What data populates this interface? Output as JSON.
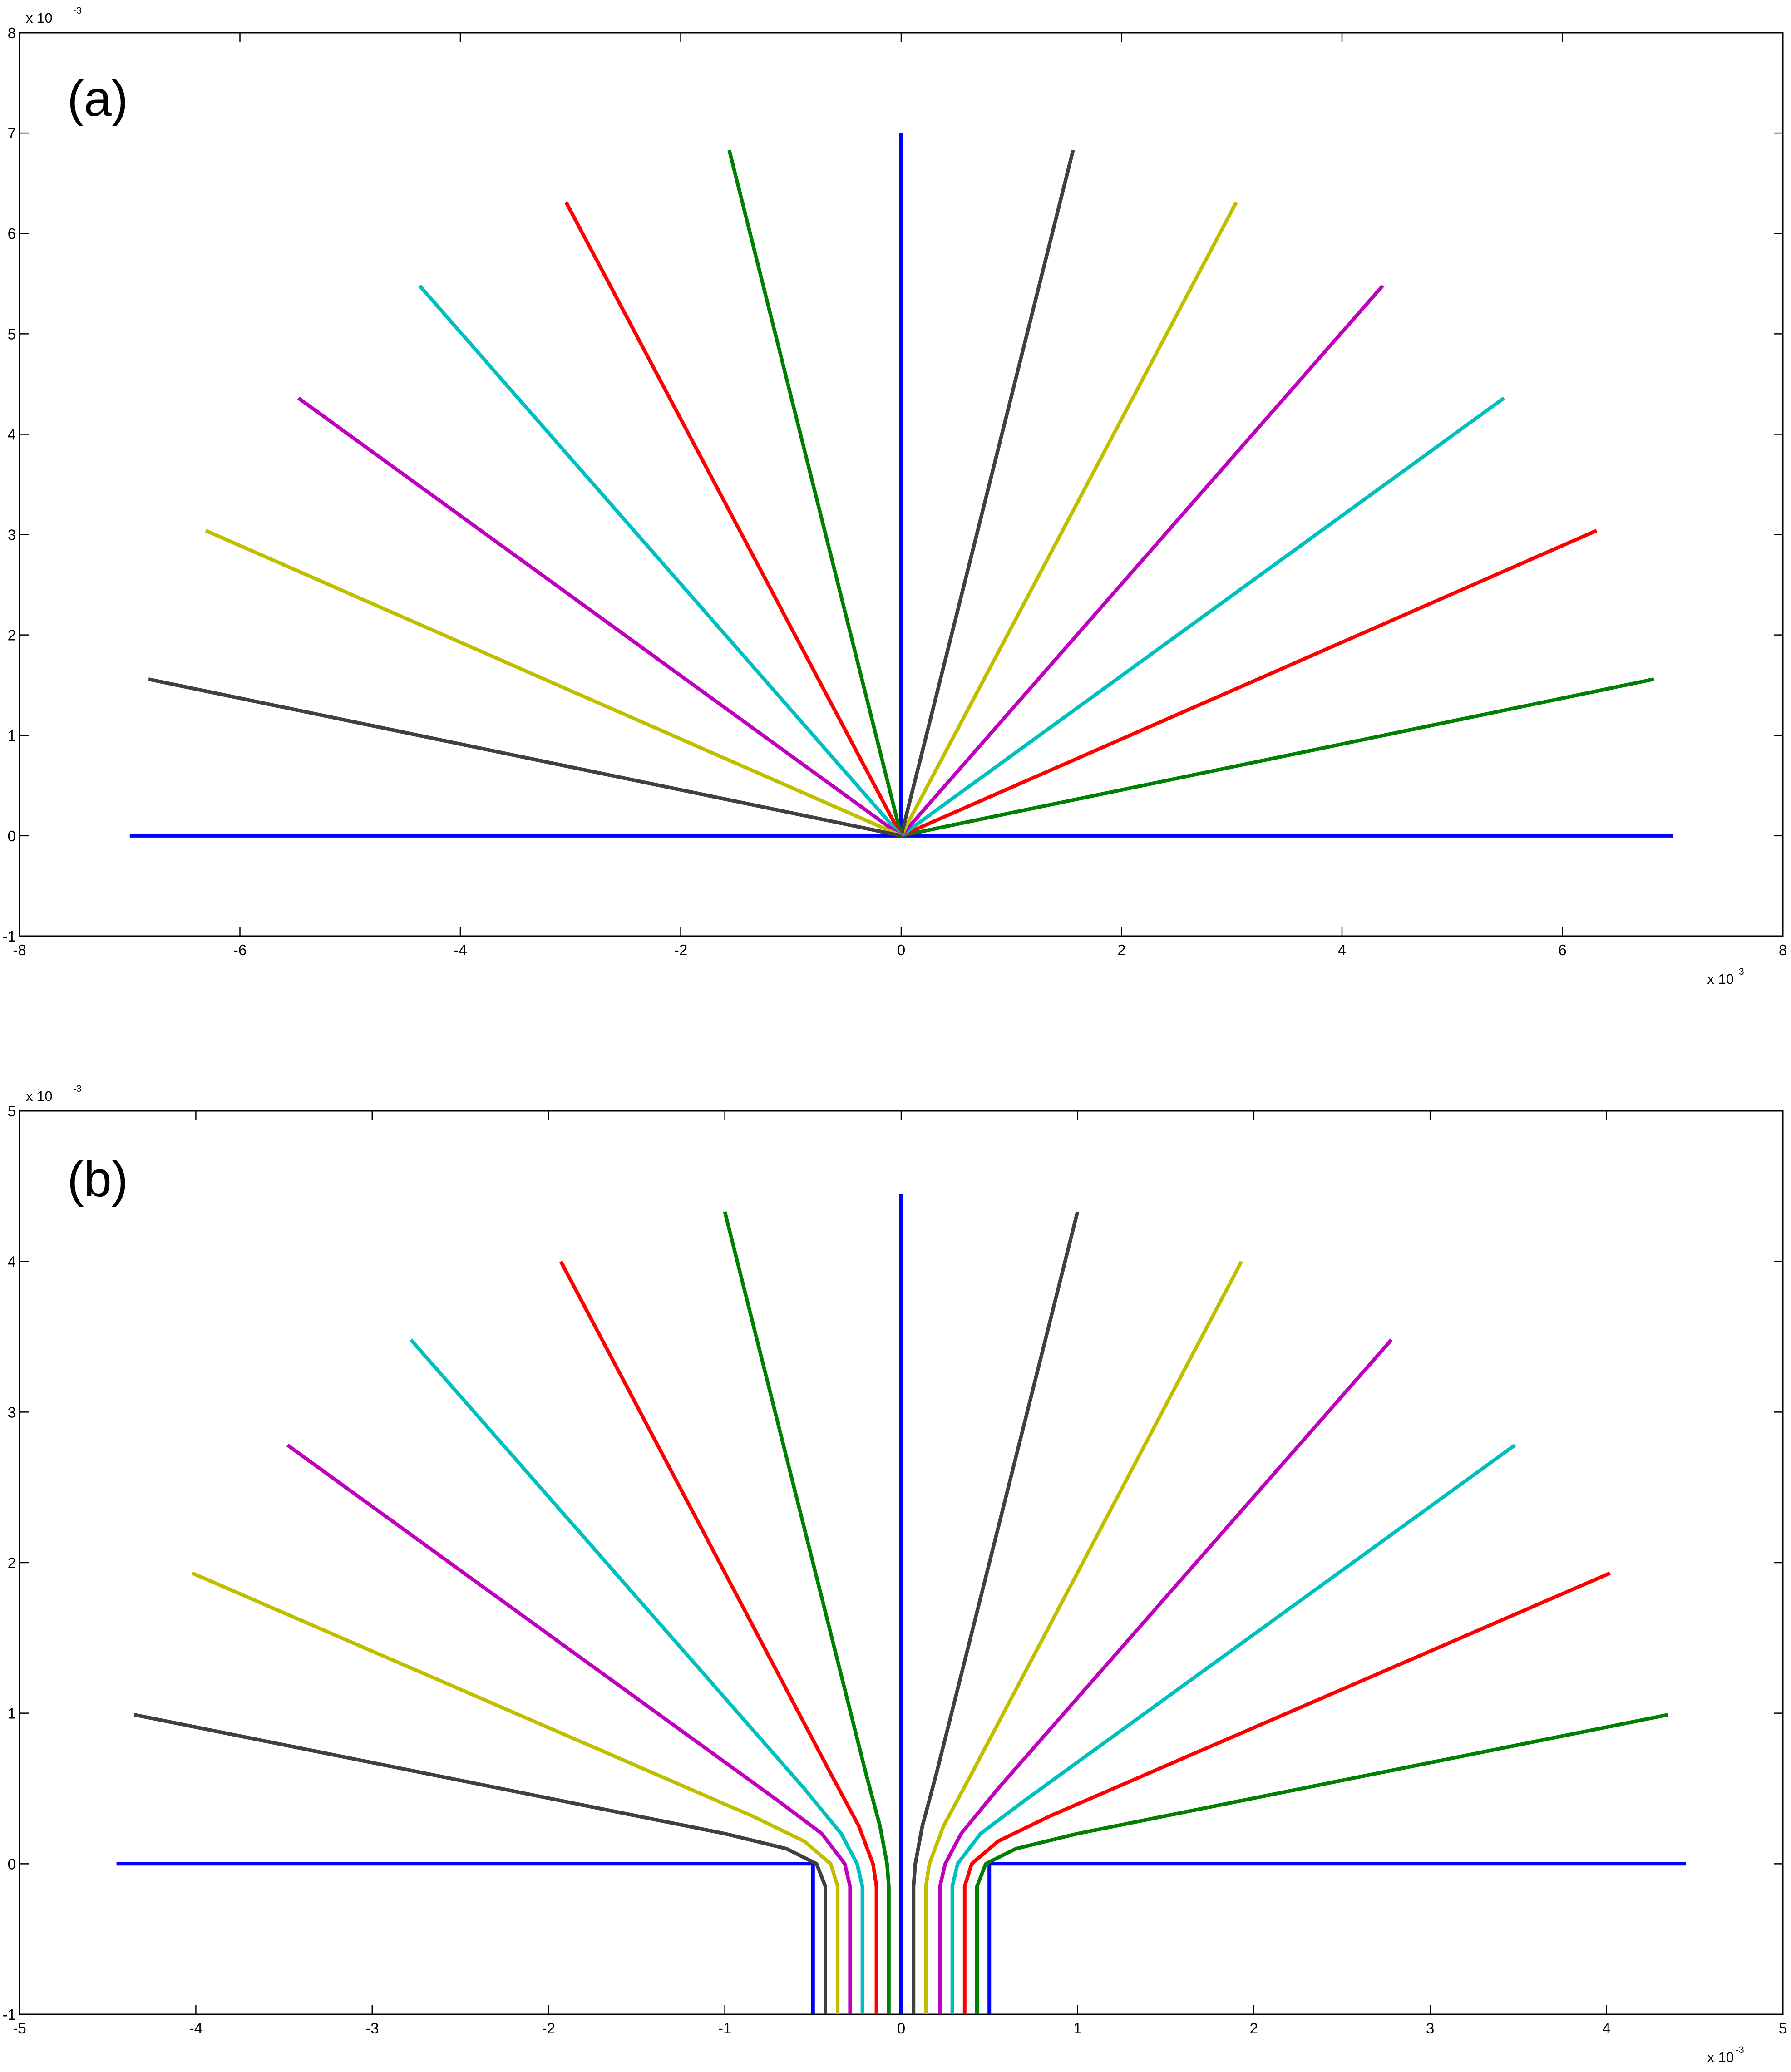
{
  "chart_data": [
    {
      "type": "line",
      "panel_label": "(a)",
      "x_exponent": "x 10",
      "x_exponent_power": "-3",
      "y_exponent": "x 10",
      "y_exponent_power": "-3",
      "xlim": [
        -8,
        8
      ],
      "ylim": [
        -1,
        8
      ],
      "xticks": [
        -8,
        -6,
        -4,
        -2,
        0,
        2,
        4,
        6,
        8
      ],
      "yticks": [
        -1,
        0,
        1,
        2,
        3,
        4,
        5,
        6,
        7,
        8
      ],
      "xtick_labels": [
        "-8",
        "-6",
        "-4",
        "-2",
        "0",
        "2",
        "4",
        "6",
        "8"
      ],
      "ytick_labels": [
        "-1",
        "0",
        "1",
        "2",
        "3",
        "4",
        "5",
        "6",
        "7",
        "8"
      ],
      "grid": false,
      "legend": "none",
      "series": [
        {
          "color": "#0000ff",
          "points": [
            [
              -7.0,
              0.0
            ],
            [
              7.0,
              0.0
            ]
          ]
        },
        {
          "color": "#0000ff",
          "points": [
            [
              0.0,
              0.0
            ],
            [
              0.0,
              7.0
            ]
          ]
        },
        {
          "color": "#008000",
          "points": [
            [
              0.0,
              0.0
            ],
            [
              6.83,
              1.56
            ]
          ]
        },
        {
          "color": "#ff0000",
          "points": [
            [
              0.0,
              0.0
            ],
            [
              6.31,
              3.04
            ]
          ]
        },
        {
          "color": "#00bfbf",
          "points": [
            [
              0.0,
              0.0
            ],
            [
              5.47,
              4.36
            ]
          ]
        },
        {
          "color": "#bf00bf",
          "points": [
            [
              0.0,
              0.0
            ],
            [
              4.37,
              5.48
            ]
          ]
        },
        {
          "color": "#bfbf00",
          "points": [
            [
              0.0,
              0.0
            ],
            [
              3.04,
              6.31
            ]
          ]
        },
        {
          "color": "#404040",
          "points": [
            [
              0.0,
              0.0
            ],
            [
              1.56,
              6.83
            ]
          ]
        },
        {
          "color": "#008000",
          "points": [
            [
              0.0,
              0.0
            ],
            [
              -1.56,
              6.83
            ]
          ]
        },
        {
          "color": "#ff0000",
          "points": [
            [
              0.0,
              0.0
            ],
            [
              -3.04,
              6.31
            ]
          ]
        },
        {
          "color": "#00bfbf",
          "points": [
            [
              0.0,
              0.0
            ],
            [
              -4.37,
              5.48
            ]
          ]
        },
        {
          "color": "#bf00bf",
          "points": [
            [
              0.0,
              0.0
            ],
            [
              -5.47,
              4.36
            ]
          ]
        },
        {
          "color": "#bfbf00",
          "points": [
            [
              0.0,
              0.0
            ],
            [
              -6.31,
              3.04
            ]
          ]
        },
        {
          "color": "#404040",
          "points": [
            [
              0.0,
              0.0
            ],
            [
              -6.83,
              1.56
            ]
          ]
        }
      ]
    },
    {
      "type": "line",
      "panel_label": "(b)",
      "x_exponent": "x 10",
      "x_exponent_power": "-3",
      "y_exponent": "x 10",
      "y_exponent_power": "-3",
      "xlim": [
        -5,
        5
      ],
      "ylim": [
        -1,
        5
      ],
      "xticks": [
        -5,
        -4,
        -3,
        -2,
        -1,
        0,
        1,
        2,
        3,
        4,
        5
      ],
      "yticks": [
        -1,
        0,
        1,
        2,
        3,
        4,
        5
      ],
      "xtick_labels": [
        "-5",
        "-4",
        "-3",
        "-2",
        "-1",
        "0",
        "1",
        "2",
        "3",
        "4",
        "5"
      ],
      "ytick_labels": [
        "-1",
        "0",
        "1",
        "2",
        "3",
        "4",
        "5"
      ],
      "grid": false,
      "legend": "none",
      "series": [
        {
          "color": "#0000ff",
          "points": [
            [
              -4.45,
              0.0
            ],
            [
              -0.5,
              0.0
            ],
            [
              -0.5,
              -1.0
            ]
          ]
        },
        {
          "color": "#0000ff",
          "points": [
            [
              4.45,
              0.0
            ],
            [
              0.5,
              0.0
            ],
            [
              0.5,
              -1.0
            ]
          ]
        },
        {
          "color": "#0000ff",
          "points": [
            [
              0.0,
              -1.0
            ],
            [
              0.0,
              4.45
            ]
          ]
        },
        {
          "color": "#404040",
          "points": [
            [
              0.07,
              -1.0
            ],
            [
              0.07,
              -0.15
            ],
            [
              0.08,
              0.0
            ],
            [
              0.12,
              0.25
            ],
            [
              0.2,
              0.6
            ],
            [
              1.0,
              4.33
            ]
          ]
        },
        {
          "color": "#bfbf00",
          "points": [
            [
              0.14,
              -1.0
            ],
            [
              0.14,
              -0.15
            ],
            [
              0.16,
              0.0
            ],
            [
              0.24,
              0.25
            ],
            [
              0.4,
              0.6
            ],
            [
              1.93,
              4.0
            ]
          ]
        },
        {
          "color": "#bf00bf",
          "points": [
            [
              0.22,
              -1.0
            ],
            [
              0.22,
              -0.15
            ],
            [
              0.25,
              0.0
            ],
            [
              0.34,
              0.2
            ],
            [
              0.55,
              0.5
            ],
            [
              2.78,
              3.48
            ]
          ]
        },
        {
          "color": "#00bfbf",
          "points": [
            [
              0.29,
              -1.0
            ],
            [
              0.29,
              -0.15
            ],
            [
              0.32,
              0.0
            ],
            [
              0.45,
              0.2
            ],
            [
              0.7,
              0.42
            ],
            [
              3.48,
              2.78
            ]
          ]
        },
        {
          "color": "#ff0000",
          "points": [
            [
              0.36,
              -1.0
            ],
            [
              0.36,
              -0.15
            ],
            [
              0.4,
              0.0
            ],
            [
              0.55,
              0.15
            ],
            [
              0.85,
              0.32
            ],
            [
              4.02,
              1.93
            ]
          ]
        },
        {
          "color": "#008000",
          "points": [
            [
              0.43,
              -1.0
            ],
            [
              0.43,
              -0.15
            ],
            [
              0.48,
              0.0
            ],
            [
              0.65,
              0.1
            ],
            [
              1.0,
              0.2
            ],
            [
              4.35,
              0.99
            ]
          ]
        },
        {
          "color": "#008000",
          "points": [
            [
              -0.07,
              -1.0
            ],
            [
              -0.07,
              -0.15
            ],
            [
              -0.08,
              0.0
            ],
            [
              -0.12,
              0.25
            ],
            [
              -0.2,
              0.6
            ],
            [
              -1.0,
              4.33
            ]
          ]
        },
        {
          "color": "#ff0000",
          "points": [
            [
              -0.14,
              -1.0
            ],
            [
              -0.14,
              -0.15
            ],
            [
              -0.16,
              0.0
            ],
            [
              -0.24,
              0.25
            ],
            [
              -0.4,
              0.6
            ],
            [
              -1.93,
              4.0
            ]
          ]
        },
        {
          "color": "#00bfbf",
          "points": [
            [
              -0.22,
              -1.0
            ],
            [
              -0.22,
              -0.15
            ],
            [
              -0.25,
              0.0
            ],
            [
              -0.34,
              0.2
            ],
            [
              -0.55,
              0.5
            ],
            [
              -2.78,
              3.48
            ]
          ]
        },
        {
          "color": "#bf00bf",
          "points": [
            [
              -0.29,
              -1.0
            ],
            [
              -0.29,
              -0.15
            ],
            [
              -0.32,
              0.0
            ],
            [
              -0.45,
              0.2
            ],
            [
              -0.7,
              0.42
            ],
            [
              -3.48,
              2.78
            ]
          ]
        },
        {
          "color": "#bfbf00",
          "points": [
            [
              -0.36,
              -1.0
            ],
            [
              -0.36,
              -0.15
            ],
            [
              -0.4,
              0.0
            ],
            [
              -0.55,
              0.15
            ],
            [
              -0.85,
              0.32
            ],
            [
              -4.02,
              1.93
            ]
          ]
        },
        {
          "color": "#404040",
          "points": [
            [
              -0.43,
              -1.0
            ],
            [
              -0.43,
              -0.15
            ],
            [
              -0.48,
              0.0
            ],
            [
              -0.65,
              0.1
            ],
            [
              -1.0,
              0.2
            ],
            [
              -4.35,
              0.99
            ]
          ]
        }
      ]
    }
  ]
}
